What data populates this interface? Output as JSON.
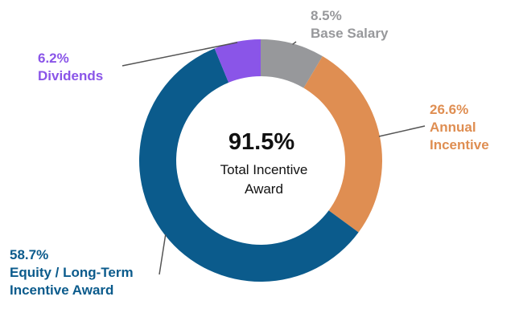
{
  "chart_data": {
    "type": "pie",
    "variant": "donut",
    "title": "",
    "center": {
      "value": "91.5%",
      "caption_lines": [
        "Total Incentive",
        "Award"
      ]
    },
    "slices": [
      {
        "key": "base",
        "value": 8.5,
        "label": "8.5%",
        "name_lines": [
          "Base Salary"
        ],
        "color": "#97989b"
      },
      {
        "key": "annual",
        "value": 26.6,
        "label": "26.6%",
        "name_lines": [
          "Annual",
          "Incentive"
        ],
        "color": "#df8e52"
      },
      {
        "key": "equity",
        "value": 58.7,
        "label": "58.7%",
        "name_lines": [
          "Equity / Long-Term",
          "Incentive Award"
        ],
        "color": "#0b5b8c"
      },
      {
        "key": "dividends",
        "value": 6.2,
        "label": "6.2%",
        "name_lines": [
          "Dividends"
        ],
        "color": "#8a55e8"
      }
    ],
    "text_color": "#111111",
    "leader_color": "#555555",
    "legend": "none",
    "grid": false
  }
}
